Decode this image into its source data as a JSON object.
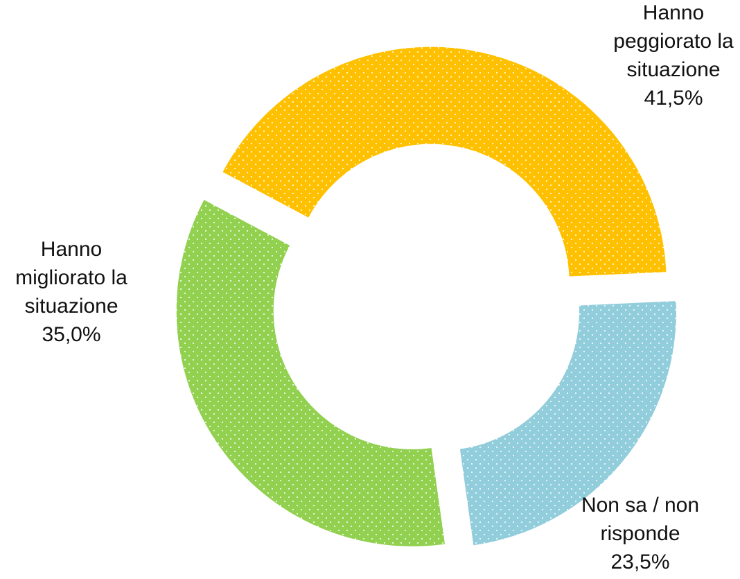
{
  "chart_data": {
    "type": "pie",
    "variant": "exploded-donut",
    "pattern": "white dots",
    "slices": [
      {
        "label": "Hanno\npeggiorato la\nsituazione",
        "value": 41.5,
        "display": "41,5%",
        "color": "#FFC000"
      },
      {
        "label": "Non sa / non\nrisponde",
        "value": 23.5,
        "display": "23,5%",
        "color": "#92CDDC"
      },
      {
        "label": "Hanno\nmigliorato la\nsituazione",
        "value": 35.0,
        "display": "35,0%",
        "color": "#92D050"
      }
    ]
  }
}
